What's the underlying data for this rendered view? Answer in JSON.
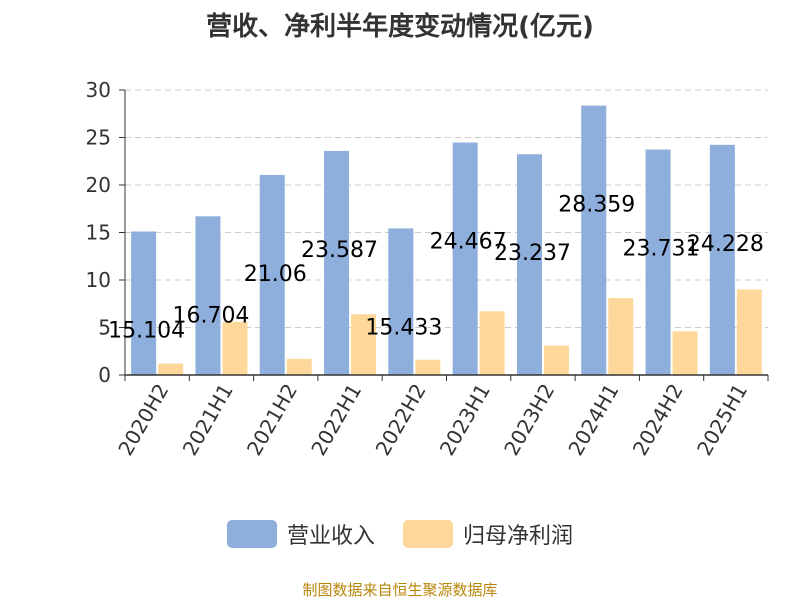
{
  "chart_data": {
    "type": "bar",
    "title": "营收、净利半年度变动情况(亿元)",
    "categories": [
      "2020H2",
      "2021H1",
      "2021H2",
      "2022H1",
      "2022H2",
      "2023H1",
      "2023H2",
      "2024H1",
      "2024H2",
      "2025H1"
    ],
    "series": [
      {
        "name": "营业收入",
        "color": "#8eaedc",
        "values": [
          15.104,
          16.704,
          21.06,
          23.587,
          15.433,
          24.467,
          23.237,
          28.359,
          23.731,
          24.228
        ]
      },
      {
        "name": "归母净利润",
        "color": "#fdd89a",
        "values": [
          1.2,
          5.6,
          1.7,
          6.4,
          1.6,
          6.7,
          3.1,
          8.1,
          4.6,
          9.0
        ]
      }
    ],
    "data_labels": [
      "15.104",
      "16.704",
      "21.06",
      "23.587",
      "15.433",
      "24.467",
      "23.237",
      "28.359",
      "23.731",
      "24.228"
    ],
    "yticks": [
      "0",
      "5",
      "10",
      "15",
      "20",
      "25",
      "30"
    ],
    "ylim": [
      0,
      30
    ],
    "grid": "horizontal dashed",
    "legend_position": "bottom"
  },
  "source_note": "制图数据来自恒生聚源数据库"
}
